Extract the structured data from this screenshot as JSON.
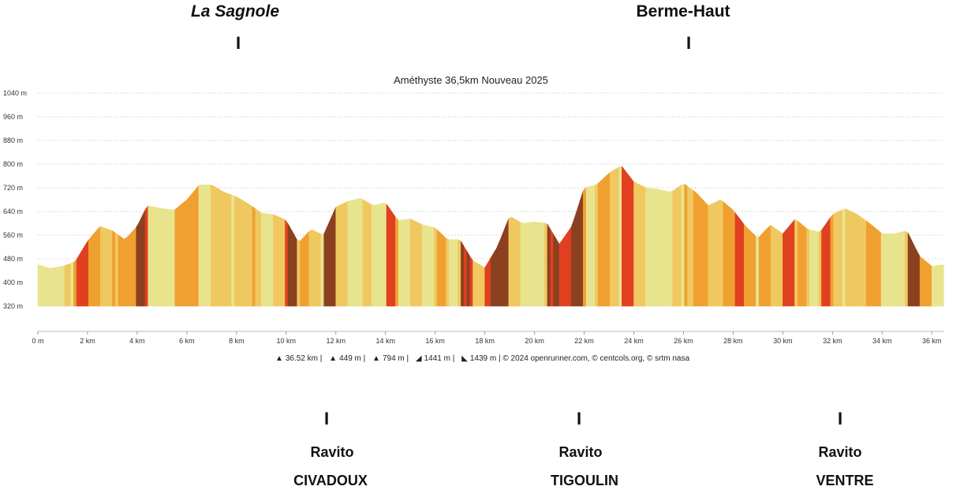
{
  "top_markers": [
    {
      "label": "La Sagnole",
      "tick": "I"
    },
    {
      "label": "Berme-Haut",
      "tick": "I"
    }
  ],
  "bottom_markers": [
    {
      "tick": "I",
      "line1": "Ravito",
      "line2": "CIVADOUX"
    },
    {
      "tick": "I",
      "line1": "Ravito",
      "line2": "TIGOULIN"
    },
    {
      "tick": "I",
      "line1": "Ravito",
      "line2": "VENTRE"
    }
  ],
  "footer": {
    "distance": "36.52 km",
    "dplus_sep": "|",
    "min_alt": "449 m",
    "max_alt": "794 m",
    "ascent": "1441 m",
    "descent": "1439 m",
    "credits": "| © 2024 openrunner.com, © centcols.org, © srtm nasa"
  },
  "colors": {
    "flat": "#e8e48e",
    "mild": "#f0c860",
    "moderate": "#f0a030",
    "steep": "#e04020",
    "very_steep": "#8b4020"
  },
  "chart_data": {
    "type": "area",
    "title": "Améthyste 36,5km Nouveau 2025",
    "xlabel": "",
    "ylabel": "",
    "x_unit": "km",
    "y_unit": "m",
    "xlim": [
      0,
      36.5
    ],
    "ylim": [
      320,
      1040
    ],
    "x_ticks": [
      "0 m",
      "2 km",
      "4 km",
      "6 km",
      "8 km",
      "10 km",
      "12 km",
      "14 km",
      "16 km",
      "18 km",
      "20 km",
      "22 km",
      "24 km",
      "26 km",
      "28 km",
      "30 km",
      "32 km",
      "34 km",
      "36 km"
    ],
    "y_ticks": [
      "1040 m",
      "960 m",
      "880 m",
      "800 m",
      "720 m",
      "640 m",
      "560 m",
      "480 m",
      "400 m",
      "320 m"
    ],
    "grid": true,
    "series": [
      {
        "x": [
          0,
          0.5,
          1.0,
          1.5,
          2.0,
          2.5,
          3.0,
          3.5,
          4.0,
          4.4,
          5.0,
          5.5,
          6.0,
          6.5,
          7.0,
          7.5,
          8.0,
          8.5,
          9.0,
          9.5,
          10.0,
          10.5,
          11.0,
          11.5,
          12.0,
          12.5,
          13.0,
          13.5,
          14.0,
          14.5,
          15.0,
          15.5,
          16.0,
          16.5,
          17.0,
          17.5,
          18.0,
          18.5,
          19.0,
          19.5,
          20.0,
          20.5,
          21.0,
          21.5,
          22.0,
          22.5,
          23.0,
          23.5,
          24.0,
          24.5,
          25.0,
          25.5,
          26.0,
          26.5,
          27.0,
          27.5,
          28.0,
          28.5,
          29.0,
          29.5,
          30.0,
          30.5,
          31.0,
          31.5,
          32.0,
          32.5,
          33.0,
          33.5,
          34.0,
          34.5,
          35.0,
          35.5,
          36.0,
          36.5
        ],
        "y": [
          460,
          448,
          455,
          470,
          540,
          590,
          575,
          545,
          590,
          660,
          650,
          645,
          680,
          730,
          730,
          705,
          690,
          665,
          635,
          630,
          610,
          535,
          580,
          560,
          655,
          675,
          685,
          660,
          670,
          610,
          615,
          595,
          585,
          545,
          545,
          475,
          450,
          520,
          625,
          600,
          605,
          600,
          530,
          590,
          720,
          730,
          770,
          795,
          740,
          720,
          715,
          705,
          735,
          705,
          660,
          680,
          645,
          590,
          550,
          595,
          565,
          615,
          580,
          570,
          630,
          650,
          630,
          600,
          565,
          565,
          575,
          490,
          455,
          460
        ]
      }
    ]
  }
}
